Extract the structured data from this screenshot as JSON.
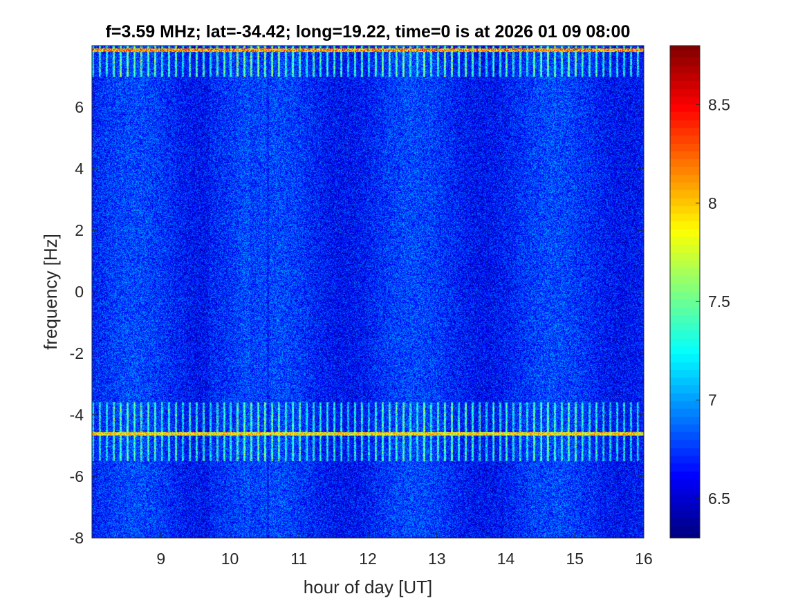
{
  "chart_data": {
    "type": "heatmap",
    "title": "f=3.59 MHz;  lat=-34.42; long=19.22, time=0 is at 2026 01 09 08:00",
    "xlabel": "hour of day [UT]",
    "ylabel": "frequency [Hz]",
    "xlim": [
      8,
      16
    ],
    "ylim": [
      -8,
      8
    ],
    "x_ticks": [
      9,
      10,
      11,
      12,
      13,
      14,
      15,
      16
    ],
    "y_ticks": [
      -8,
      -6,
      -4,
      -2,
      0,
      2,
      4,
      6
    ],
    "colorbar": {
      "colormap": "jet",
      "clim": [
        6.3,
        8.8
      ],
      "ticks": [
        6.5,
        7,
        7.5,
        8,
        8.5
      ]
    },
    "background_level": 6.7,
    "features": {
      "periodic_stripe_hour_spacing": 0.1,
      "bands": [
        {
          "freq_range": [
            7.0,
            8.0
          ],
          "level": 7.6,
          "peak_freq": 7.85,
          "peak_level": 8.6
        },
        {
          "freq_range": [
            -5.5,
            -3.6
          ],
          "level": 7.5,
          "peak_freq": -4.62,
          "peak_level": 8.3
        }
      ],
      "dark_vertical_line_hour": 10.55
    }
  }
}
